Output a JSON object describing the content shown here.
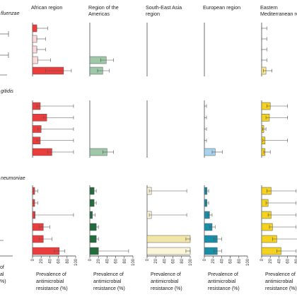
{
  "columns": [
    {
      "id": "afr",
      "title": [
        "African region"
      ],
      "colors": [
        "#ec3d3d",
        "#fadada"
      ]
    },
    {
      "id": "amr",
      "title": [
        "Region of the",
        "Americas"
      ],
      "colors": [
        "#1f6e3b",
        "#9fc8a8"
      ]
    },
    {
      "id": "sear",
      "title": [
        "South-East Asia",
        "region"
      ],
      "colors": [
        "#f1e6a6",
        "#fbf6d9"
      ]
    },
    {
      "id": "eur",
      "title": [
        "European region"
      ],
      "colors": [
        "#188ea8",
        "#a8d3ee"
      ]
    },
    {
      "id": "emr",
      "title": [
        "Eastern",
        "Mediterranean re"
      ],
      "colors": [
        "#f5d21e",
        "#fbe98a"
      ]
    }
  ],
  "row_labels": [
    "fluenzae",
    "gitidis",
    "neumoniae"
  ],
  "x_axis": {
    "ticks": [
      "0",
      "20",
      "40",
      "60",
      "80",
      "100"
    ],
    "label": [
      "Prevalence of",
      "antimicrobial",
      "resistance (%)"
    ],
    "left_partial": [
      "of",
      "al",
      "%)"
    ]
  },
  "chart_data": [
    {
      "type": "bar",
      "row": "fluenzae",
      "xlim": [
        0,
        100
      ],
      "unit": "%",
      "series": [
        {
          "name": "African region",
          "values": [
            10,
            10,
            10,
            12,
            72
          ],
          "err_low": [
            10,
            10,
            10,
            12,
            30
          ],
          "err_high": [
            35,
            30,
            30,
            42,
            90
          ],
          "shade": [
            "dark",
            "light",
            "light",
            "light",
            "dark"
          ]
        },
        {
          "name": "Region of the Americas",
          "values": [
            null,
            null,
            null,
            38,
            30
          ],
          "err_low": [
            null,
            null,
            null,
            25,
            18
          ],
          "err_high": [
            null,
            null,
            null,
            55,
            45
          ],
          "shade": [
            null,
            null,
            null,
            "light",
            "light"
          ]
        },
        {
          "name": "South-East Asia region",
          "values": [
            null,
            null,
            null,
            null,
            null
          ],
          "err_low": [],
          "err_high": [],
          "shade": []
        },
        {
          "name": "European region",
          "values": [
            null,
            null,
            null,
            null,
            null
          ],
          "err_low": [],
          "err_high": [],
          "shade": []
        },
        {
          "name": "Eastern Mediterranean region",
          "values": [
            0,
            0,
            0,
            0,
            10
          ],
          "err_low": [
            0,
            0,
            0,
            0,
            4
          ],
          "err_high": [
            12,
            12,
            12,
            12,
            24
          ],
          "shade": [
            "light",
            "light",
            "light",
            "light",
            "light"
          ]
        }
      ]
    },
    {
      "type": "bar",
      "row": "gitidis",
      "xlim": [
        0,
        100
      ],
      "unit": "%",
      "series": [
        {
          "name": "African region",
          "values": [
            18,
            33,
            20,
            18,
            45
          ],
          "err_low": [
            10,
            25,
            12,
            10,
            35
          ],
          "err_high": [
            95,
            95,
            95,
            95,
            95
          ],
          "shade": [
            "dark",
            "dark",
            "dark",
            "dark",
            "dark"
          ]
        },
        {
          "name": "Region of the Americas",
          "values": [
            null,
            null,
            null,
            null,
            40
          ],
          "err_low": [
            null,
            null,
            null,
            null,
            30
          ],
          "err_high": [
            null,
            null,
            null,
            null,
            55
          ],
          "shade": [
            null,
            null,
            null,
            null,
            "light"
          ]
        },
        {
          "name": "South-East Asia region",
          "values": [
            null,
            null,
            null,
            null,
            null
          ],
          "err_low": [],
          "err_high": [],
          "shade": []
        },
        {
          "name": "European region",
          "values": [
            0,
            0,
            0,
            0,
            25
          ],
          "err_low": [
            0,
            0,
            0,
            0,
            18
          ],
          "err_high": [
            5,
            5,
            5,
            5,
            42
          ],
          "shade": [
            "light",
            "light",
            "light",
            "light",
            "light"
          ]
        },
        {
          "name": "Eastern Mediterranean region",
          "values": [
            20,
            18,
            5,
            8,
            8
          ],
          "err_low": [
            12,
            10,
            2,
            3,
            5
          ],
          "err_high": [
            60,
            60,
            10,
            60,
            20
          ],
          "shade": [
            "dark",
            "dark",
            "dark",
            "dark",
            "dark"
          ]
        }
      ]
    },
    {
      "type": "bar",
      "row": "neumoniae",
      "xlim": [
        0,
        100
      ],
      "unit": "%",
      "series": [
        {
          "name": "African region",
          "values": [
            5,
            5,
            6,
            25,
            25,
            62
          ],
          "err_low": [
            3,
            3,
            4,
            15,
            15,
            50
          ],
          "err_high": [
            12,
            12,
            95,
            40,
            45,
            75
          ],
          "shade": [
            "dark",
            "dark",
            "dark",
            "dark",
            "dark",
            "dark"
          ]
        },
        {
          "name": "Region of the Americas",
          "values": [
            10,
            10,
            6,
            15,
            15,
            20
          ],
          "err_low": [
            6,
            6,
            4,
            10,
            10,
            15
          ],
          "err_high": [
            15,
            15,
            12,
            20,
            20,
            90
          ],
          "shade": [
            "dark",
            "dark",
            "dark",
            "dark",
            "dark",
            "dark"
          ]
        },
        {
          "name": "South-East Asia region",
          "values": [
            10,
            null,
            10,
            null,
            100,
            100
          ],
          "err_low": [
            5,
            null,
            5,
            null,
            90,
            90
          ],
          "err_high": [
            92,
            null,
            92,
            null,
            100,
            100
          ],
          "shade": [
            "light",
            null,
            "light",
            null,
            "dark",
            "light"
          ]
        },
        {
          "name": "European region",
          "values": [
            6,
            6,
            12,
            18,
            30,
            30
          ],
          "err_low": [
            3,
            3,
            8,
            12,
            22,
            22
          ],
          "err_high": [
            10,
            10,
            18,
            25,
            40,
            40
          ],
          "shade": [
            "dark",
            "dark",
            "dark",
            "dark",
            "dark",
            "dark"
          ]
        },
        {
          "name": "Eastern Mediterranean region",
          "values": [
            22,
            15,
            22,
            25,
            35,
            45
          ],
          "err_low": [
            12,
            10,
            15,
            18,
            25,
            35
          ],
          "err_high": [
            80,
            80,
            80,
            80,
            90,
            80
          ],
          "shade": [
            "dark",
            "dark",
            "dark",
            "dark",
            "dark",
            "dark"
          ]
        }
      ]
    }
  ]
}
